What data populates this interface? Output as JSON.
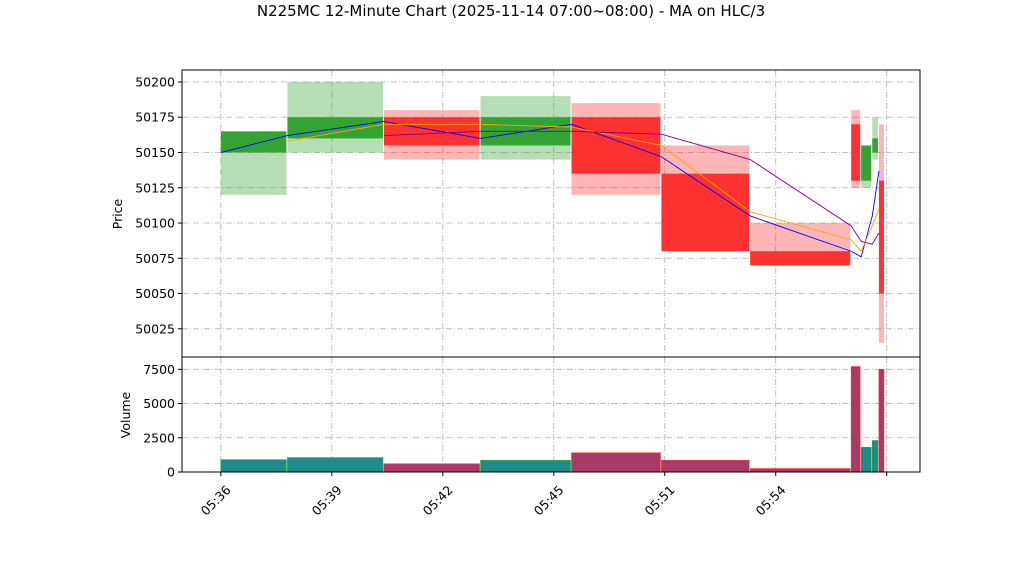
{
  "chart_data": {
    "type": "candlestick",
    "title": "N225MC 12-Minute Chart (2025-11-14 07:00~08:00) - MA on HLC/3",
    "ylabel": "Price",
    "volume_label": "Volume",
    "x": [
      0,
      0.6,
      1.47,
      2.34,
      3.16,
      3.97,
      4.77,
      5.68,
      5.77,
      5.87,
      5.93
    ],
    "open": [
      50150,
      50160,
      50175,
      50155,
      50175,
      50135,
      50080,
      50170,
      50130,
      50150,
      50130
    ],
    "high": [
      50165,
      50200,
      50180,
      50190,
      50185,
      50155,
      50100,
      50180,
      50155,
      50175,
      50170
    ],
    "low": [
      50120,
      50150,
      50145,
      50145,
      50120,
      50080,
      50070,
      50125,
      50125,
      50145,
      50015
    ],
    "close": [
      50165,
      50175,
      50155,
      50175,
      50135,
      50080,
      50070,
      50130,
      50155,
      50160,
      50050
    ],
    "volume": [
      900,
      1050,
      600,
      850,
      1400,
      850,
      250,
      7700,
      1800,
      2300,
      7500
    ],
    "up_color": "#2ca02c",
    "down_color": "#ff2a2a",
    "volume_up_color": "#1f8a8a",
    "volume_down_color": "#a83a6a",
    "ma_series": [
      {
        "color": "#0000ff",
        "values": [
          50150,
          50162,
          50172,
          50160,
          50170,
          50147,
          50105,
          50080,
          50076,
          50105,
          50137
        ]
      },
      {
        "color": "#ffa500",
        "values": [
          null,
          50158,
          50170,
          50170,
          50168,
          50155,
          50108,
          50088,
          50080,
          50098,
          50110
        ]
      },
      {
        "color": "#800080",
        "values": [
          null,
          null,
          50162,
          50165,
          50165,
          50163,
          50145,
          50098,
          50087,
          50085,
          50093
        ]
      }
    ],
    "xlim": [
      -0.35,
      6.3
    ],
    "xticks": [
      {
        "value": 0,
        "label": "05:36"
      },
      {
        "value": 1,
        "label": "05:39"
      },
      {
        "value": 2,
        "label": "05:42"
      },
      {
        "value": 3,
        "label": "05:45"
      },
      {
        "value": 4,
        "label": "05:51"
      },
      {
        "value": 5,
        "label": "05:54"
      },
      {
        "value": 6,
        "label": null
      }
    ],
    "ylim": [
      50005,
      50208.5
    ],
    "yticks": [
      50025,
      50050,
      50075,
      50100,
      50125,
      50150,
      50175,
      50200
    ],
    "volume_ylim": [
      0,
      8400
    ],
    "volume_yticks": [
      0,
      2500,
      5000,
      7500
    ],
    "grid": true
  }
}
